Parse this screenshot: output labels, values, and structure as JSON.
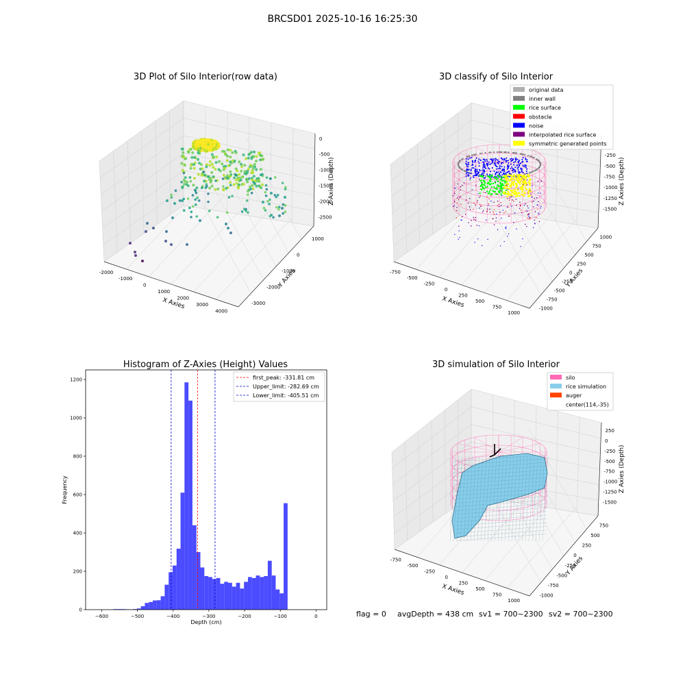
{
  "figure_title": "BRCSD01 2025-10-16 16:25:30",
  "status_line": {
    "flag": "flag = 0",
    "avg_depth": "avgDepth = 438 cm",
    "sv1": "sv1 = 700~2300",
    "sv2": "sv2 = 700~2300"
  },
  "colors": {
    "hist_bar": "#4b4bff",
    "first_peak": "#ff0000",
    "limits": "#0000cc",
    "silo": "#ff69b4",
    "rice": "#87ceeb",
    "auger": "#ff4500"
  },
  "chart_data": [
    {
      "type": "scatter",
      "title": "3D Plot of Silo Interior(row data)",
      "xlabel": "X Axies",
      "ylabel": "Y Axies",
      "zlabel": "Z Axies (Depth)",
      "x_ticks": [
        "-2000",
        "-1000",
        "0",
        "1000",
        "2000",
        "3000",
        "4000"
      ],
      "y_ticks": [
        "-3000",
        "-2000",
        "-1000",
        "0",
        "1000"
      ],
      "z_ticks": [
        "0",
        "-500",
        "-1000",
        "-1500",
        "-2000",
        "-2500"
      ],
      "colormap": "viridis"
    },
    {
      "type": "scatter",
      "title": "3D classify of Silo Interior",
      "xlabel": "X Axies",
      "ylabel": "Y Axies",
      "zlabel": "Z Axies (Depth)",
      "x_ticks": [
        "-750",
        "-500",
        "-250",
        "0",
        "250",
        "500",
        "750",
        "1000"
      ],
      "y_ticks": [
        "-1000",
        "-750",
        "-500",
        "-250",
        "0",
        "250",
        "500",
        "750",
        "1000"
      ],
      "z_ticks": [
        "0",
        "-250",
        "-500",
        "-750",
        "-1000",
        "-1250",
        "-1500"
      ],
      "legend": [
        {
          "label": "original data",
          "color": "#b0b0b0"
        },
        {
          "label": "inner wall",
          "color": "#808080"
        },
        {
          "label": "rice surface",
          "color": "#00ff00"
        },
        {
          "label": "obstacle",
          "color": "#ff0000"
        },
        {
          "label": "noise",
          "color": "#0000ff"
        },
        {
          "label": "interpolated rice surface",
          "color": "#800080"
        },
        {
          "label": "symmetric generated points",
          "color": "#ffff00"
        }
      ]
    },
    {
      "type": "bar",
      "title": "Histogram of Z-Axies (Height) Values",
      "xlabel": "Depth (cm)",
      "ylabel": "Frequency",
      "xlim": [
        -645,
        30
      ],
      "ylim": [
        0,
        1250
      ],
      "x_ticks": [
        -600,
        -500,
        -400,
        -300,
        -200,
        -100,
        0
      ],
      "y_ticks": [
        0,
        200,
        400,
        600,
        800,
        1000,
        1200
      ],
      "bin_width": 11.1,
      "bin_start": -568,
      "values": [
        3,
        3,
        3,
        2,
        1,
        3,
        6,
        18,
        35,
        40,
        48,
        49,
        70,
        130,
        195,
        230,
        318,
        610,
        1185,
        1090,
        440,
        300,
        220,
        175,
        170,
        160,
        165,
        135,
        145,
        140,
        120,
        140,
        110,
        145,
        170,
        165,
        178,
        170,
        175,
        255,
        178,
        105,
        85,
        555
      ],
      "lines": [
        {
          "label": "first_peak: -331.81 cm",
          "x": -331.81,
          "color": "#ff0000"
        },
        {
          "label": "Upper_limit: -282.69 cm",
          "x": -282.69,
          "color": "#0000cc"
        },
        {
          "label": "Lower_limit: -405.51 cm",
          "x": -405.51,
          "color": "#0000cc"
        }
      ]
    },
    {
      "type": "area",
      "title": "3D simulation of Silo Interior",
      "xlabel": "X Axies",
      "ylabel": "Y Axies",
      "zlabel": "Z Axies (Depth)",
      "x_ticks": [
        "-750",
        "-500",
        "-250",
        "0",
        "250",
        "500",
        "750",
        "1000"
      ],
      "y_ticks": [
        "-1000",
        "-750",
        "-500",
        "-250",
        "0",
        "250",
        "500",
        "750"
      ],
      "z_ticks": [
        "250",
        "0",
        "-250",
        "-500",
        "-750",
        "-1000",
        "-1250",
        "-1500"
      ],
      "legend": [
        {
          "label": "silo",
          "color": "#ff69b4"
        },
        {
          "label": "rice simulation",
          "color": "#87ceeb"
        },
        {
          "label": "auger",
          "color": "#ff4500"
        },
        {
          "label": "center(114,-35)",
          "color": ""
        }
      ]
    }
  ]
}
